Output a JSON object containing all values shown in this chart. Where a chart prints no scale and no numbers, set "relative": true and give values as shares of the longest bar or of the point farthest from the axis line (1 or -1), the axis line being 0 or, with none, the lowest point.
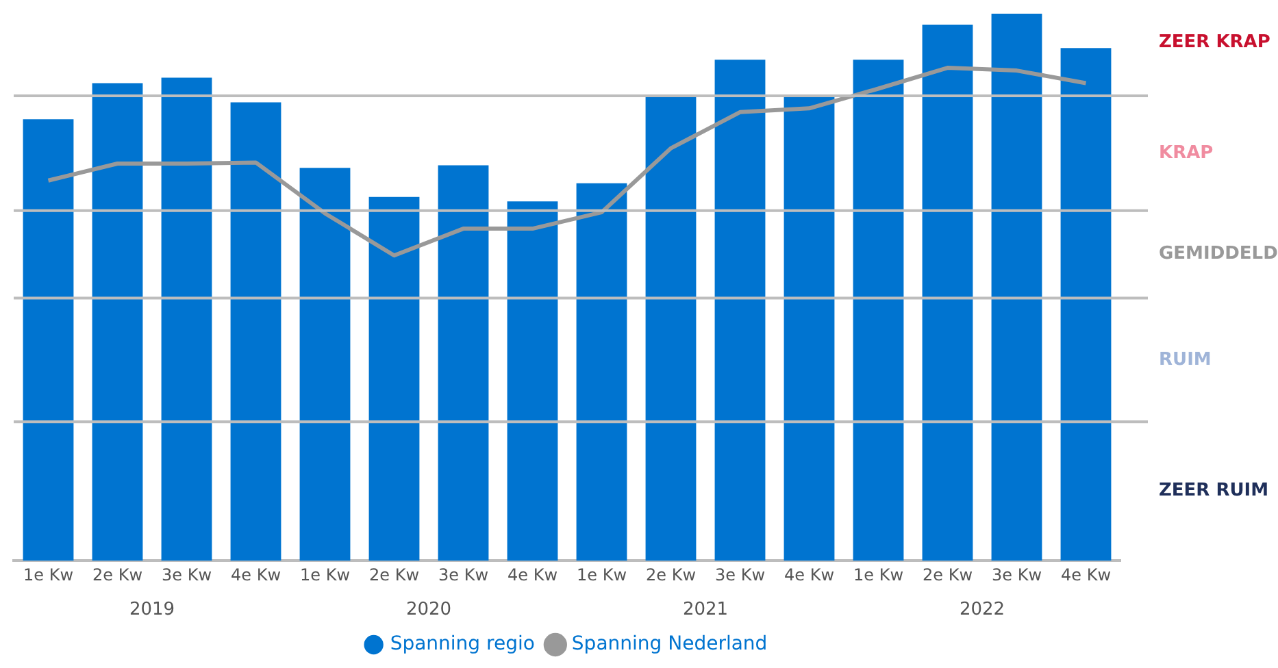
{
  "chart_data": {
    "type": "bar",
    "relative": true,
    "categories": [
      "1e Kw",
      "2e Kw",
      "3e Kw",
      "4e Kw",
      "1e Kw",
      "2e Kw",
      "3e Kw",
      "4e Kw",
      "1e Kw",
      "2e Kw",
      "3e Kw",
      "4e Kw",
      "1e Kw",
      "2e Kw",
      "3e Kw",
      "4e Kw"
    ],
    "series": [
      {
        "name": "Spanning regio",
        "color": "#0074d0",
        "values": [
          0.807,
          0.873,
          0.883,
          0.838,
          0.718,
          0.665,
          0.723,
          0.657,
          0.69,
          0.848,
          0.916,
          0.848,
          0.916,
          0.98,
          1,
          0.937
        ]
      },
      {
        "name": "Spanning Nederland",
        "type": "line",
        "color": "#999999",
        "values": [
          0.695,
          0.726,
          0.726,
          0.728,
          0.635,
          0.558,
          0.607,
          0.607,
          0.637,
          0.754,
          0.82,
          0.827,
          0.863,
          0.901,
          0.896,
          0.873
        ]
      }
    ],
    "ref_lines": [
      {
        "axis": "y",
        "value": 0.85,
        "color": "#bdbdbd"
      },
      {
        "axis": "y",
        "value": 0.64,
        "color": "#bdbdbd"
      },
      {
        "axis": "y",
        "value": 0.48,
        "color": "#bdbdbd"
      },
      {
        "axis": "y",
        "value": 0.254,
        "color": "#bdbdbd"
      }
    ],
    "annotations": [
      "2019",
      "2020",
      "2021",
      "2022",
      "ZEER KRAP",
      "KRAP",
      "GEMIDDELD",
      "RUIM",
      "ZEER RUIM"
    ],
    "legend": "bottom",
    "marker": "none",
    "grid": false
  }
}
